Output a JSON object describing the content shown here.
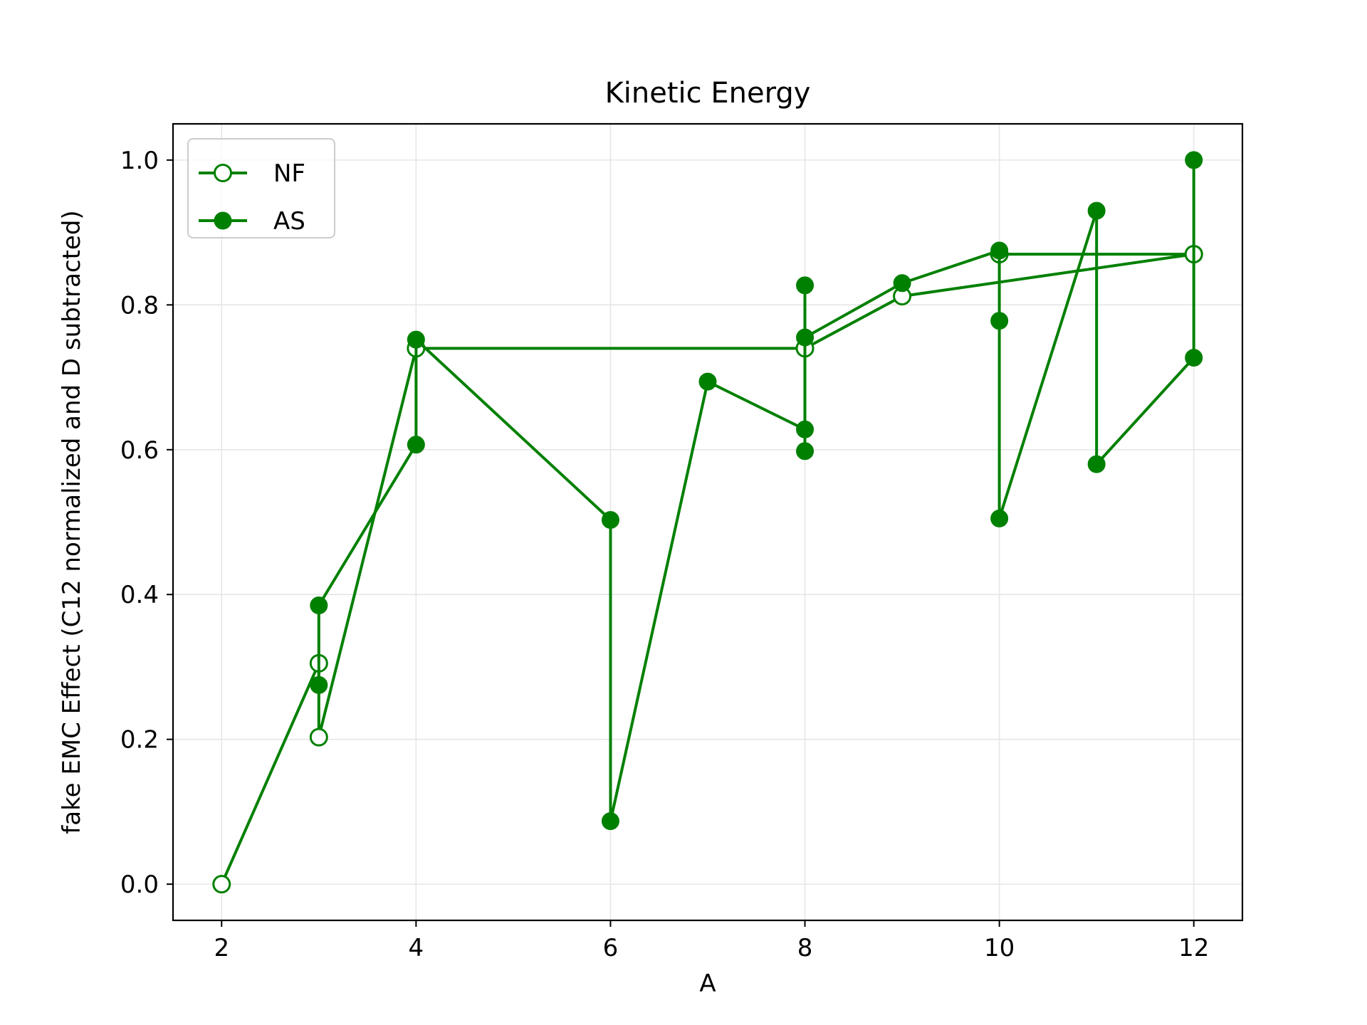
{
  "chart_data": {
    "type": "line",
    "title": "Kinetic Energy",
    "xlabel": "A",
    "ylabel": "fake EMC Effect (C12 normalized and D subtracted)",
    "xlim": [
      1.5,
      12.5
    ],
    "ylim": [
      -0.05,
      1.05
    ],
    "xticks": [
      2,
      4,
      6,
      8,
      10,
      12
    ],
    "xtick_labels": [
      "2",
      "4",
      "6",
      "8",
      "10",
      "12"
    ],
    "yticks": [
      0.0,
      0.2,
      0.4,
      0.6,
      0.8,
      1.0
    ],
    "ytick_labels": [
      "0.0",
      "0.2",
      "0.4",
      "0.6",
      "0.8",
      "1.0"
    ],
    "grid": true,
    "legend_position": "upper-left",
    "colors": {
      "series": "#008000",
      "grid": "#e6e6e6",
      "axes": "#000000"
    },
    "series": [
      {
        "name": "NF",
        "marker": "open-circle",
        "color": "#008000",
        "x": [
          2,
          3,
          3,
          4,
          8,
          9,
          12,
          10,
          12
        ],
        "y": [
          0.0,
          0.305,
          0.203,
          0.74,
          0.74,
          0.812,
          0.87,
          0.87,
          0.87
        ]
      },
      {
        "name": "AS",
        "marker": "filled-circle",
        "color": "#008000",
        "x": [
          3,
          3,
          4,
          4,
          6,
          6,
          7,
          8,
          8,
          8,
          8,
          9,
          10,
          10,
          10,
          11,
          11,
          12,
          12
        ],
        "y": [
          0.275,
          0.385,
          0.607,
          0.752,
          0.503,
          0.087,
          0.694,
          0.628,
          0.598,
          0.827,
          0.755,
          0.83,
          0.875,
          0.778,
          0.505,
          0.93,
          0.58,
          0.727,
          1.0
        ]
      }
    ]
  }
}
